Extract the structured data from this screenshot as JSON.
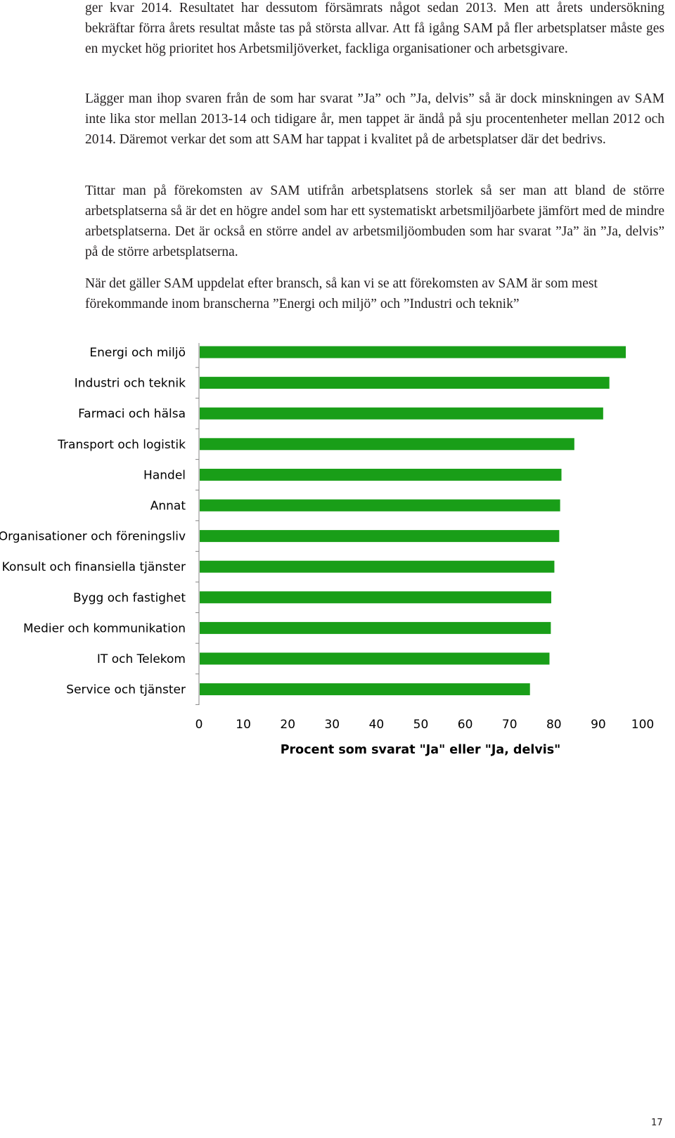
{
  "paragraphs": [
    "ger kvar 2014. Resultatet har dessutom försämrats något sedan 2013. Men att årets undersökning bekräftar förra årets resultat måste tas på största allvar. Att få igång SAM på fler arbetsplatser måste ges en mycket hög prioritet hos Arbetsmiljöverket, fackliga organisationer och arbetsgivare.",
    "Lägger man ihop svaren från de som har svarat ”Ja” och ”Ja, delvis” så är dock minskningen av SAM inte lika stor mellan 2013-14 och tidigare år, men tappet är ändå på sju procentenheter mellan 2012 och 2014. Däremot verkar det som att SAM har tappat i kvalitet på de arbetsplatser där det bedrivs.",
    "Tittar man på förekomsten av SAM utifrån arbetsplatsens storlek så ser man att bland de större arbetsplatserna så är det en högre andel som har ett systematiskt arbetsmiljöarbete jämfört med de mindre arbetsplatserna. Det är också en större andel av arbetsmiljöombuden som har svarat ”Ja” än ”Ja, delvis” på de större arbetsplatserna.",
    "När det gäller SAM uppdelat efter bransch, så kan vi se att förekomsten av SAM är som mest förekommande inom branscherna ”Energi och miljö” och ”Industri och teknik”"
  ],
  "chart_data": {
    "type": "bar",
    "orientation": "horizontal",
    "categories": [
      "Energi och miljö",
      "Industri och teknik",
      "Farmaci och hälsa",
      "Transport och logistik",
      "Handel",
      "Annat",
      "Organisationer och föreningsliv",
      "Konsult och finansiella tjänster",
      "Bygg och fastighet",
      "Medier och kommunikation",
      "IT och Telekom",
      "Service och tjänster"
    ],
    "values": [
      96.2,
      92.5,
      91.1,
      84.6,
      81.7,
      81.4,
      81.2,
      80.1,
      79.4,
      79.3,
      79.0,
      74.6
    ],
    "xlabel": "Procent som svarat \"Ja\" eller \"Ja, delvis\"",
    "ylabel": "",
    "xlim": [
      0,
      100
    ],
    "xticks": [
      "0",
      "10",
      "20",
      "30",
      "40",
      "50",
      "60",
      "70",
      "80",
      "90",
      "100"
    ],
    "bar_color": "#199e18",
    "grid": false
  },
  "page_number": "17"
}
